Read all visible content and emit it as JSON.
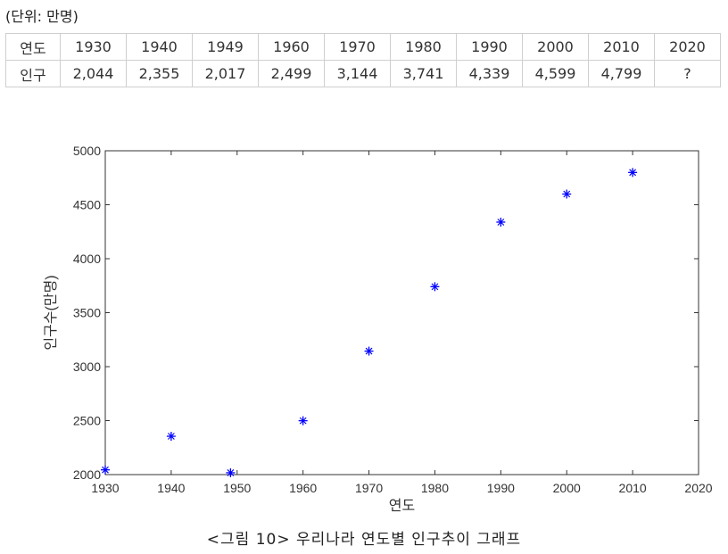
{
  "unit_note": "(단위: 만명)",
  "table": {
    "row_headers": [
      "연도",
      "인구"
    ],
    "years": [
      "1930",
      "1940",
      "1949",
      "1960",
      "1970",
      "1980",
      "1990",
      "2000",
      "2010",
      "2020"
    ],
    "population": [
      "2,044",
      "2,355",
      "2,017",
      "2,499",
      "3,144",
      "3,741",
      "4,339",
      "4,599",
      "4,799",
      "?"
    ]
  },
  "chart_data": {
    "type": "scatter",
    "x": [
      1930,
      1940,
      1949,
      1960,
      1970,
      1980,
      1990,
      2000,
      2010
    ],
    "y": [
      2044,
      2355,
      2017,
      2499,
      3144,
      3741,
      4339,
      4599,
      4799
    ],
    "xlabel": "연도",
    "ylabel": "인구수(만명)",
    "xlim": [
      1930,
      2020
    ],
    "ylim": [
      2000,
      5000
    ],
    "xticks": [
      1930,
      1940,
      1950,
      1960,
      1970,
      1980,
      1990,
      2000,
      2010,
      2020
    ],
    "yticks": [
      2000,
      2500,
      3000,
      3500,
      4000,
      4500,
      5000
    ],
    "marker": "star",
    "marker_color": "#0000ff",
    "grid": false
  },
  "caption": "<그림 10> 우리나라 연도별 인구추이 그래프"
}
